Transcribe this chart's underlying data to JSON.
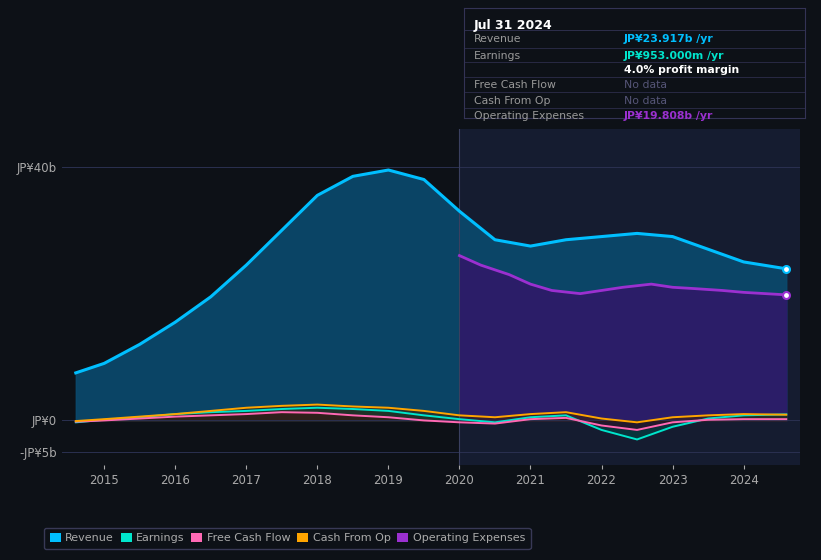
{
  "bg_color": "#0d1117",
  "plot_bg_color": "#0d1117",
  "years": [
    2014.6,
    2015.0,
    2015.5,
    2016.0,
    2016.5,
    2017.0,
    2017.5,
    2018.0,
    2018.5,
    2019.0,
    2019.5,
    2020.0,
    2020.5,
    2021.0,
    2021.5,
    2022.0,
    2022.5,
    2023.0,
    2023.5,
    2024.0,
    2024.6
  ],
  "revenue": [
    7.5,
    9.0,
    12.0,
    15.5,
    19.5,
    24.5,
    30.0,
    35.5,
    38.5,
    39.5,
    38.0,
    33.0,
    28.5,
    27.5,
    28.5,
    29.0,
    29.5,
    29.0,
    27.0,
    25.0,
    23.917
  ],
  "earnings": [
    -0.3,
    0.1,
    0.5,
    1.0,
    1.3,
    1.5,
    1.8,
    2.0,
    1.8,
    1.5,
    0.8,
    0.2,
    -0.3,
    0.5,
    0.8,
    -1.5,
    -3.0,
    -1.0,
    0.3,
    0.8,
    0.953
  ],
  "free_cash_flow": [
    -0.2,
    0.0,
    0.3,
    0.6,
    0.8,
    1.0,
    1.3,
    1.2,
    0.8,
    0.5,
    0.0,
    -0.3,
    -0.5,
    0.2,
    0.4,
    -0.8,
    -1.5,
    -0.3,
    0.1,
    0.2,
    0.2
  ],
  "cash_from_op": [
    -0.1,
    0.2,
    0.6,
    1.0,
    1.5,
    2.0,
    2.3,
    2.5,
    2.2,
    2.0,
    1.5,
    0.8,
    0.5,
    1.0,
    1.3,
    0.3,
    -0.3,
    0.5,
    0.8,
    1.0,
    0.9
  ],
  "op_expenses_x": [
    2020.0,
    2020.3,
    2020.7,
    2021.0,
    2021.3,
    2021.7,
    2022.0,
    2022.3,
    2022.7,
    2023.0,
    2023.3,
    2023.7,
    2024.0,
    2024.6
  ],
  "op_expenses": [
    26.0,
    24.5,
    23.0,
    21.5,
    20.5,
    20.0,
    20.5,
    21.0,
    21.5,
    21.0,
    20.8,
    20.5,
    20.2,
    19.808
  ],
  "revenue_color": "#00bfff",
  "earnings_color": "#00e5cc",
  "free_cash_flow_color": "#ff69b4",
  "cash_from_op_color": "#ffa500",
  "op_expenses_color": "#9b30d0",
  "ylabel_color": "#aaaaaa",
  "tick_color": "#aaaaaa",
  "grid_color": "#2a3050",
  "legend_bg": "#0d1117",
  "legend_border": "#444466",
  "xlim": [
    2014.4,
    2024.8
  ],
  "ylim": [
    -7,
    46
  ],
  "ytick_vals": [
    -5,
    0,
    40
  ],
  "ytick_labels": [
    "-JP¥5b",
    "JP¥0",
    "JP¥40b"
  ],
  "xticks": [
    2015,
    2016,
    2017,
    2018,
    2019,
    2020,
    2021,
    2022,
    2023,
    2024
  ],
  "highlight_start": 2020.0,
  "highlight_end": 2024.8,
  "tooltip_title": "Jul 31 2024",
  "tooltip_rows": [
    {
      "label": "Revenue",
      "value": "JP¥23.917b /yr",
      "color": "#00bfff",
      "bold_val": true
    },
    {
      "label": "Earnings",
      "value": "JP¥953.000m /yr",
      "color": "#00e5cc",
      "bold_val": true
    },
    {
      "label": "",
      "value": "4.0% profit margin",
      "color": "#ffffff",
      "bold_val": true
    },
    {
      "label": "Free Cash Flow",
      "value": "No data",
      "color": "#555577",
      "bold_val": false
    },
    {
      "label": "Cash From Op",
      "value": "No data",
      "color": "#555577",
      "bold_val": false
    },
    {
      "label": "Operating Expenses",
      "value": "JP¥19.808b /yr",
      "color": "#9b30d0",
      "bold_val": true
    }
  ]
}
